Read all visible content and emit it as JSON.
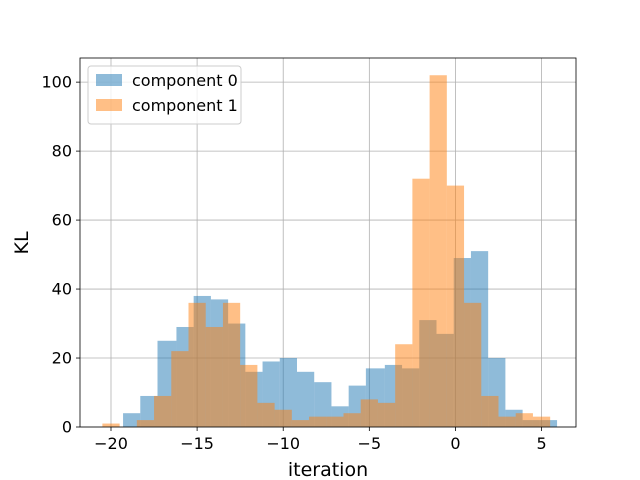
{
  "chart_data": {
    "type": "histogram",
    "xlabel": "iteration",
    "ylabel": "KL",
    "xlim": [
      -21.8,
      7.0
    ],
    "ylim": [
      0,
      107
    ],
    "xticks": [
      -20,
      -15,
      -10,
      -5,
      0,
      5
    ],
    "xtick_labels": [
      "−20",
      "−15",
      "−10",
      "−5",
      "0",
      "5"
    ],
    "yticks": [
      0,
      20,
      40,
      60,
      80,
      100
    ],
    "ytick_labels": [
      "0",
      "20",
      "40",
      "60",
      "80",
      "100"
    ],
    "grid": true,
    "legend_position": "upper-left",
    "series": [
      {
        "name": "component 0",
        "color": "#1f77b4",
        "alpha": 0.5,
        "bins": [
          [
            -19.3,
            -18.3,
            4
          ],
          [
            -18.3,
            -17.3,
            9
          ],
          [
            -17.3,
            -16.2,
            25
          ],
          [
            -16.2,
            -15.2,
            29
          ],
          [
            -15.2,
            -14.2,
            38
          ],
          [
            -14.2,
            -13.2,
            37
          ],
          [
            -13.2,
            -12.2,
            30
          ],
          [
            -12.2,
            -11.2,
            16
          ],
          [
            -11.2,
            -10.2,
            19
          ],
          [
            -10.2,
            -9.2,
            20
          ],
          [
            -9.2,
            -8.2,
            16
          ],
          [
            -8.2,
            -7.2,
            13
          ],
          [
            -7.2,
            -6.2,
            6
          ],
          [
            -6.2,
            -5.2,
            12
          ],
          [
            -5.2,
            -4.1,
            17
          ],
          [
            -4.1,
            -3.1,
            18
          ],
          [
            -3.1,
            -2.1,
            17
          ],
          [
            -2.1,
            -1.1,
            31
          ],
          [
            -1.1,
            -0.1,
            27
          ],
          [
            -0.1,
            0.9,
            49
          ],
          [
            0.9,
            1.9,
            51
          ],
          [
            1.9,
            2.9,
            20
          ],
          [
            2.9,
            3.9,
            5
          ],
          [
            3.9,
            4.9,
            2
          ],
          [
            4.9,
            5.9,
            2
          ]
        ]
      },
      {
        "name": "component 1",
        "color": "#ff7f0e",
        "alpha": 0.5,
        "bins": [
          [
            -20.5,
            -19.5,
            1
          ],
          [
            -19.5,
            -18.5,
            0
          ],
          [
            -18.5,
            -17.5,
            2
          ],
          [
            -17.5,
            -16.5,
            9
          ],
          [
            -16.5,
            -15.5,
            22
          ],
          [
            -15.5,
            -14.5,
            36
          ],
          [
            -14.5,
            -13.5,
            29
          ],
          [
            -13.5,
            -12.5,
            36
          ],
          [
            -12.5,
            -11.5,
            18
          ],
          [
            -11.5,
            -10.5,
            7
          ],
          [
            -10.5,
            -9.5,
            5
          ],
          [
            -9.5,
            -8.5,
            2
          ],
          [
            -8.5,
            -7.5,
            3
          ],
          [
            -7.5,
            -6.5,
            3
          ],
          [
            -6.5,
            -5.5,
            4
          ],
          [
            -5.5,
            -4.5,
            8
          ],
          [
            -4.5,
            -3.5,
            7
          ],
          [
            -3.5,
            -2.5,
            24
          ],
          [
            -2.5,
            -1.5,
            72
          ],
          [
            -1.5,
            -0.5,
            102
          ],
          [
            -0.5,
            0.5,
            70
          ],
          [
            0.5,
            1.5,
            36
          ],
          [
            1.5,
            2.5,
            9
          ],
          [
            2.5,
            3.5,
            3
          ],
          [
            3.5,
            4.5,
            4
          ],
          [
            4.5,
            5.5,
            3
          ],
          [
            5.5,
            5.9,
            0
          ]
        ]
      }
    ]
  }
}
